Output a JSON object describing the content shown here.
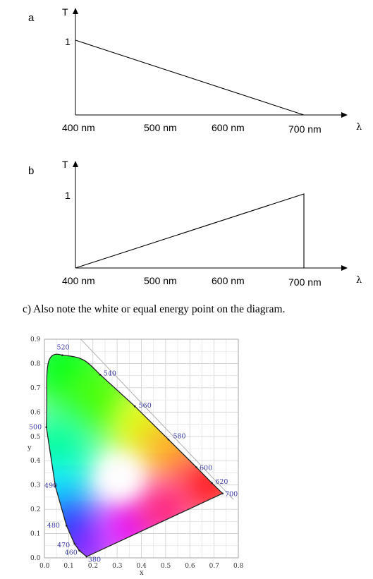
{
  "panel_a": {
    "label": "a",
    "y_axis_title": "T",
    "x_axis_symbol": "λ",
    "y_tick_label": "1",
    "x_tick_labels": [
      "400 nm",
      "500 nm",
      "600 nm",
      "700 nm"
    ]
  },
  "panel_b": {
    "label": "b",
    "y_axis_title": "T",
    "x_axis_symbol": "λ",
    "y_tick_label": "1",
    "x_tick_labels": [
      "400 nm",
      "500 nm",
      "600 nm",
      "700 nm"
    ]
  },
  "caption": "c)  Also note the white or equal energy point on the diagram.",
  "cie": {
    "xlabel": "x",
    "ylabel": "y",
    "x_ticks": [
      "0.0",
      "0.1",
      "0.2",
      "0.3",
      "0.4",
      "0.5",
      "0.6",
      "0.7",
      "0.8"
    ],
    "y_ticks": [
      "0.0",
      "0.1",
      "0.2",
      "0.3",
      "0.4",
      "0.5",
      "0.6",
      "0.7",
      "0.8",
      "0.9"
    ],
    "wavelength_labels": [
      "520",
      "540",
      "560",
      "580",
      "600",
      "620",
      "700",
      "500",
      "490",
      "480",
      "470",
      "460",
      "380"
    ]
  },
  "chart_data": [
    {
      "type": "line",
      "x": [
        400,
        700
      ],
      "y": [
        1,
        0
      ],
      "xticks": [
        400,
        500,
        600,
        700
      ],
      "xlabel": "λ",
      "ylabel": "T",
      "ylim": [
        0,
        1
      ]
    },
    {
      "type": "line",
      "x": [
        400,
        700,
        700
      ],
      "y": [
        0,
        1,
        0
      ],
      "xticks": [
        400,
        500,
        600,
        700
      ],
      "xlabel": "λ",
      "ylabel": "T",
      "ylim": [
        0,
        1
      ]
    },
    {
      "type": "scatter",
      "x_range": [
        0,
        0.8
      ],
      "y_range": [
        0,
        0.9
      ],
      "xlabel": "x",
      "ylabel": "y",
      "grid": true,
      "spectral_locus": [
        {
          "wavelength": 380,
          "x": 0.174,
          "y": 0.005
        },
        {
          "wavelength": 460,
          "x": 0.144,
          "y": 0.03
        },
        {
          "wavelength": 470,
          "x": 0.124,
          "y": 0.058
        },
        {
          "wavelength": 480,
          "x": 0.091,
          "y": 0.133
        },
        {
          "wavelength": 490,
          "x": 0.045,
          "y": 0.295
        },
        {
          "wavelength": 500,
          "x": 0.008,
          "y": 0.538
        },
        {
          "wavelength": 520,
          "x": 0.074,
          "y": 0.834
        },
        {
          "wavelength": 540,
          "x": 0.23,
          "y": 0.754
        },
        {
          "wavelength": 560,
          "x": 0.373,
          "y": 0.624
        },
        {
          "wavelength": 580,
          "x": 0.512,
          "y": 0.487
        },
        {
          "wavelength": 600,
          "x": 0.627,
          "y": 0.373
        },
        {
          "wavelength": 620,
          "x": 0.691,
          "y": 0.308
        },
        {
          "wavelength": 700,
          "x": 0.735,
          "y": 0.265
        }
      ]
    }
  ]
}
